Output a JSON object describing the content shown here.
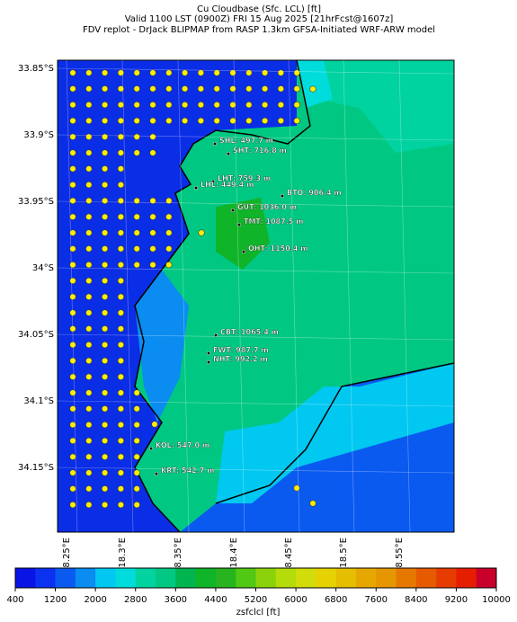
{
  "header": {
    "lines": [
      "Cu Cloudbase (Sfc. LCL) [ft]",
      "Valid 1100 LST (0900Z) FRI 15 Aug 2025 [21hrFcst@1607z]",
      "FDV replot - DrJack BLIPMAP from RASP 1.3km GFSA-Initiated WRF-ARW model"
    ]
  },
  "map": {
    "lat_labels": [
      "33.85°S",
      "33.9°S",
      "33.95°S",
      "34°S",
      "34.05°S",
      "34.1°S",
      "34.15°S"
    ],
    "lon_labels": [
      "18.25°E",
      "18.3°E",
      "18.35°E",
      "18.4°E",
      "18.45°E",
      "18.5°E",
      "18.55°E"
    ],
    "stations": [
      "SHL: 497.7 m",
      "SHT: 716.8 m",
      "LHT: 759.3 m",
      "LHL: 449.4 m",
      "BTO: 906.4 m",
      "GUT: 1036.0 m",
      "TMT: 1087.5 m",
      "OHT: 1150.4 m",
      "CBT: 1065.4 m",
      "FWT: 987.7 m",
      "NHT: 992.2 m",
      "KOL: 547.0 m",
      "KRT: 542.7 m"
    ]
  },
  "colorbar": {
    "label": "zsfclcl [ft]",
    "lim": [
      400,
      10000
    ],
    "ticks": [
      400,
      1200,
      2000,
      2800,
      3600,
      4400,
      5200,
      6000,
      6800,
      7600,
      8400,
      9200,
      10000
    ],
    "colors": [
      "#0a14e6",
      "#0a32f0",
      "#0a5af0",
      "#0a8cf0",
      "#00c8f0",
      "#00dcdc",
      "#00d2a0",
      "#00c882",
      "#00b450",
      "#10b428",
      "#28b41e",
      "#50c814",
      "#8cd20a",
      "#b4dc0a",
      "#d2dc0a",
      "#e6d200",
      "#e6be00",
      "#e6a800",
      "#e69600",
      "#e67800",
      "#e65a00",
      "#e63c00",
      "#e61e00",
      "#c8002a"
    ]
  }
}
